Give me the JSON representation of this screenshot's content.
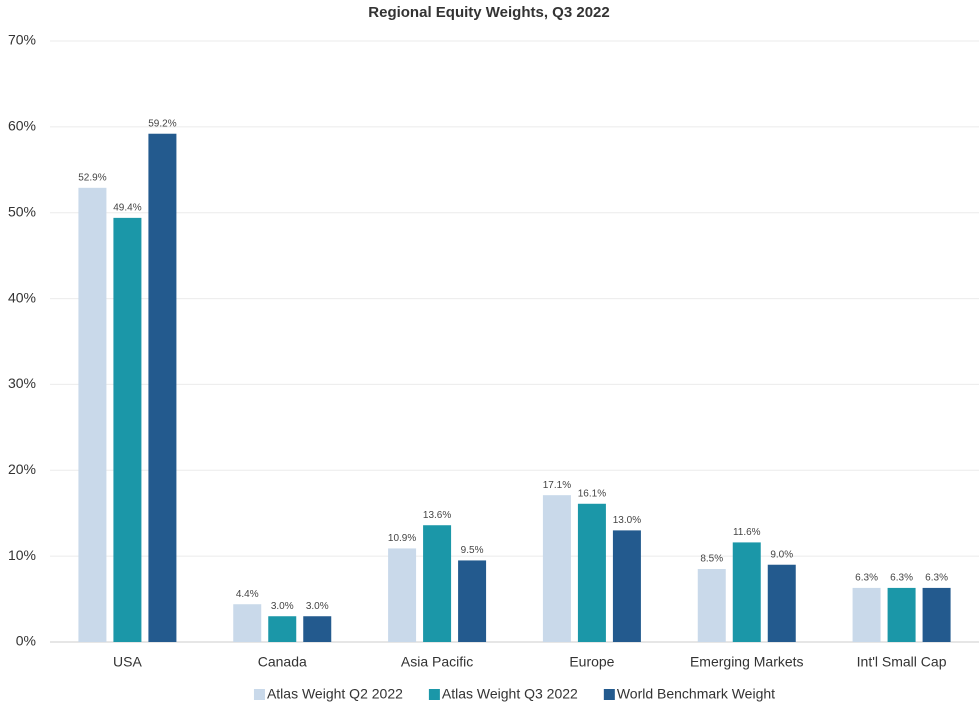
{
  "chart_data": {
    "type": "bar",
    "title": "Regional Equity Weights, Q3 2022",
    "categories": [
      "USA",
      "Canada",
      "Asia Pacific",
      "Europe",
      "Emerging Markets",
      "Int'l Small Cap"
    ],
    "series": [
      {
        "name": "Atlas Weight Q2 2022",
        "color": "#c9d9ea",
        "values": [
          52.9,
          4.4,
          10.9,
          17.1,
          8.5,
          6.3
        ],
        "value_labels": [
          "52.9%",
          "4.4%",
          "10.9%",
          "17.1%",
          "8.5%",
          "6.3%"
        ]
      },
      {
        "name": "Atlas Weight Q3 2022",
        "color": "#1b97a8",
        "values": [
          49.4,
          3.0,
          13.6,
          16.1,
          11.6,
          6.3
        ],
        "value_labels": [
          "49.4%",
          "3.0%",
          "13.6%",
          "16.1%",
          "11.6%",
          "6.3%"
        ]
      },
      {
        "name": "World Benchmark Weight",
        "color": "#235a8e",
        "values": [
          59.2,
          3.0,
          9.5,
          13.0,
          9.0,
          6.3
        ],
        "value_labels": [
          "59.2%",
          "3.0%",
          "9.5%",
          "13.0%",
          "9.0%",
          "6.3%"
        ]
      }
    ],
    "ylim": [
      0,
      70
    ],
    "yticks": [
      {
        "value": 0,
        "label": "0%"
      },
      {
        "value": 10,
        "label": "10%"
      },
      {
        "value": 20,
        "label": "20%"
      },
      {
        "value": 30,
        "label": "30%"
      },
      {
        "value": 40,
        "label": "40%"
      },
      {
        "value": 50,
        "label": "50%"
      },
      {
        "value": 60,
        "label": "60%"
      },
      {
        "value": 70,
        "label": "70%"
      }
    ],
    "grid": true,
    "legend": "bottom"
  }
}
